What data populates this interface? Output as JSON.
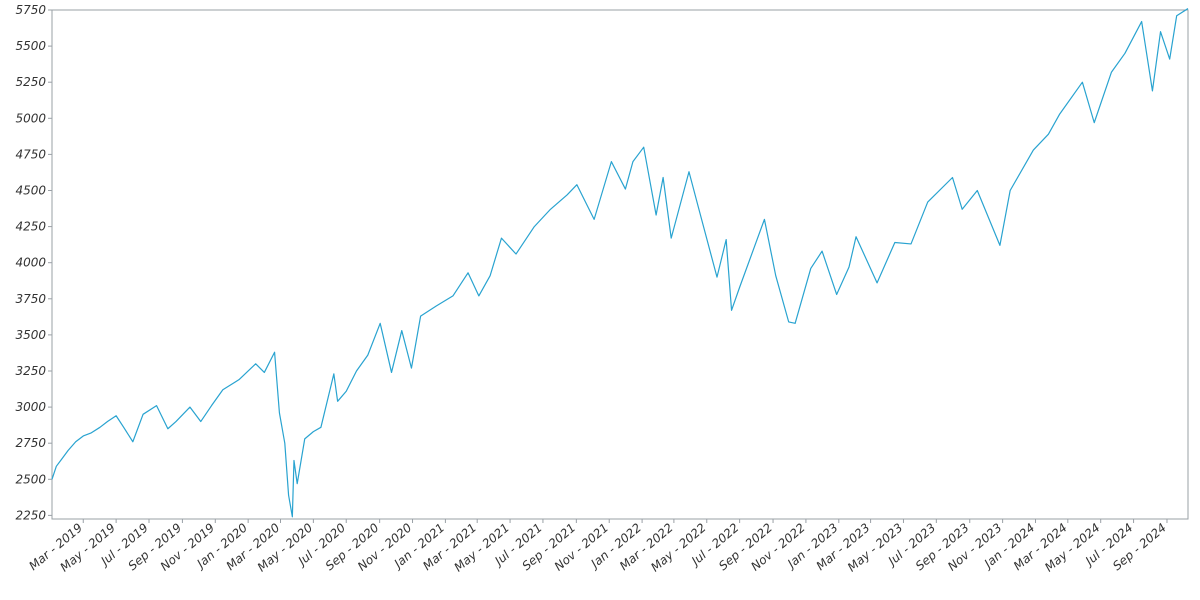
{
  "chart_data": {
    "type": "line",
    "title": "",
    "xlabel": "",
    "ylabel": "",
    "xlim": [
      "2019-01-02",
      "2024-10-10"
    ],
    "ylim": [
      2225,
      5750
    ],
    "grid": false,
    "line_color": "#29a3d0",
    "y_ticks": [
      2250,
      2500,
      2750,
      3000,
      3250,
      3500,
      3750,
      4000,
      4250,
      4500,
      4750,
      5000,
      5250,
      5500,
      5750
    ],
    "x_ticks": [
      {
        "date": "2019-03-01",
        "label": "Mar - 2019"
      },
      {
        "date": "2019-05-01",
        "label": "May - 2019"
      },
      {
        "date": "2019-07-01",
        "label": "Jul - 2019"
      },
      {
        "date": "2019-09-01",
        "label": "Sep - 2019"
      },
      {
        "date": "2019-11-01",
        "label": "Nov - 2019"
      },
      {
        "date": "2020-01-01",
        "label": "Jan - 2020"
      },
      {
        "date": "2020-03-01",
        "label": "Mar - 2020"
      },
      {
        "date": "2020-05-01",
        "label": "May - 2020"
      },
      {
        "date": "2020-07-01",
        "label": "Jul - 2020"
      },
      {
        "date": "2020-09-01",
        "label": "Sep - 2020"
      },
      {
        "date": "2020-11-01",
        "label": "Nov - 2020"
      },
      {
        "date": "2021-01-01",
        "label": "Jan - 2021"
      },
      {
        "date": "2021-03-01",
        "label": "Mar - 2021"
      },
      {
        "date": "2021-05-01",
        "label": "May - 2021"
      },
      {
        "date": "2021-07-01",
        "label": "Jul - 2021"
      },
      {
        "date": "2021-09-01",
        "label": "Sep - 2021"
      },
      {
        "date": "2021-11-01",
        "label": "Nov - 2021"
      },
      {
        "date": "2022-01-01",
        "label": "Jan - 2022"
      },
      {
        "date": "2022-03-01",
        "label": "Mar - 2022"
      },
      {
        "date": "2022-05-01",
        "label": "May - 2022"
      },
      {
        "date": "2022-07-01",
        "label": "Jul - 2022"
      },
      {
        "date": "2022-09-01",
        "label": "Sep - 2022"
      },
      {
        "date": "2022-11-01",
        "label": "Nov - 2022"
      },
      {
        "date": "2023-01-01",
        "label": "Jan - 2023"
      },
      {
        "date": "2023-03-01",
        "label": "Mar - 2023"
      },
      {
        "date": "2023-05-01",
        "label": "May - 2023"
      },
      {
        "date": "2023-07-01",
        "label": "Jul - 2023"
      },
      {
        "date": "2023-09-01",
        "label": "Sep - 2023"
      },
      {
        "date": "2023-11-01",
        "label": "Nov - 2023"
      },
      {
        "date": "2024-01-01",
        "label": "Jan - 2024"
      },
      {
        "date": "2024-03-01",
        "label": "Mar - 2024"
      },
      {
        "date": "2024-05-01",
        "label": "May - 2024"
      },
      {
        "date": "2024-07-01",
        "label": "Jul - 2024"
      },
      {
        "date": "2024-09-01",
        "label": "Sep - 2024"
      }
    ],
    "series": [
      {
        "points": [
          [
            "2019-01-02",
            2500
          ],
          [
            "2019-01-10",
            2590
          ],
          [
            "2019-01-20",
            2640
          ],
          [
            "2019-02-01",
            2700
          ],
          [
            "2019-02-15",
            2760
          ],
          [
            "2019-03-01",
            2800
          ],
          [
            "2019-03-15",
            2820
          ],
          [
            "2019-04-01",
            2860
          ],
          [
            "2019-04-15",
            2900
          ],
          [
            "2019-05-01",
            2940
          ],
          [
            "2019-05-15",
            2860
          ],
          [
            "2019-06-01",
            2760
          ],
          [
            "2019-06-20",
            2950
          ],
          [
            "2019-07-15",
            3010
          ],
          [
            "2019-08-05",
            2850
          ],
          [
            "2019-08-20",
            2900
          ],
          [
            "2019-09-15",
            3000
          ],
          [
            "2019-10-05",
            2900
          ],
          [
            "2019-10-25",
            3010
          ],
          [
            "2019-11-15",
            3120
          ],
          [
            "2019-12-15",
            3190
          ],
          [
            "2020-01-15",
            3300
          ],
          [
            "2020-01-31",
            3240
          ],
          [
            "2020-02-19",
            3380
          ],
          [
            "2020-02-28",
            2960
          ],
          [
            "2020-03-09",
            2750
          ],
          [
            "2020-03-16",
            2390
          ],
          [
            "2020-03-23",
            2240
          ],
          [
            "2020-03-26",
            2630
          ],
          [
            "2020-04-01",
            2470
          ],
          [
            "2020-04-15",
            2780
          ],
          [
            "2020-05-01",
            2830
          ],
          [
            "2020-05-15",
            2860
          ],
          [
            "2020-06-08",
            3230
          ],
          [
            "2020-06-15",
            3040
          ],
          [
            "2020-07-01",
            3110
          ],
          [
            "2020-07-20",
            3250
          ],
          [
            "2020-08-10",
            3360
          ],
          [
            "2020-09-02",
            3580
          ],
          [
            "2020-09-23",
            3240
          ],
          [
            "2020-10-12",
            3530
          ],
          [
            "2020-10-30",
            3270
          ],
          [
            "2020-11-16",
            3630
          ],
          [
            "2020-12-15",
            3700
          ],
          [
            "2021-01-15",
            3770
          ],
          [
            "2021-02-12",
            3930
          ],
          [
            "2021-03-04",
            3770
          ],
          [
            "2021-03-25",
            3910
          ],
          [
            "2021-04-15",
            4170
          ],
          [
            "2021-05-12",
            4060
          ],
          [
            "2021-06-15",
            4250
          ],
          [
            "2021-07-15",
            4370
          ],
          [
            "2021-08-15",
            4470
          ],
          [
            "2021-09-02",
            4540
          ],
          [
            "2021-10-04",
            4300
          ],
          [
            "2021-11-05",
            4700
          ],
          [
            "2021-12-01",
            4510
          ],
          [
            "2021-12-15",
            4700
          ],
          [
            "2022-01-04",
            4800
          ],
          [
            "2022-01-27",
            4330
          ],
          [
            "2022-02-09",
            4590
          ],
          [
            "2022-02-24",
            4170
          ],
          [
            "2022-03-29",
            4630
          ],
          [
            "2022-04-15",
            4390
          ],
          [
            "2022-05-20",
            3900
          ],
          [
            "2022-06-06",
            4160
          ],
          [
            "2022-06-16",
            3670
          ],
          [
            "2022-07-01",
            3830
          ],
          [
            "2022-08-16",
            4300
          ],
          [
            "2022-09-06",
            3910
          ],
          [
            "2022-09-30",
            3590
          ],
          [
            "2022-10-12",
            3580
          ],
          [
            "2022-11-10",
            3960
          ],
          [
            "2022-12-01",
            4080
          ],
          [
            "2022-12-28",
            3780
          ],
          [
            "2023-01-20",
            3970
          ],
          [
            "2023-02-02",
            4180
          ],
          [
            "2023-03-13",
            3860
          ],
          [
            "2023-04-15",
            4140
          ],
          [
            "2023-05-15",
            4130
          ],
          [
            "2023-06-15",
            4420
          ],
          [
            "2023-07-31",
            4590
          ],
          [
            "2023-08-18",
            4370
          ],
          [
            "2023-09-15",
            4500
          ],
          [
            "2023-10-27",
            4120
          ],
          [
            "2023-11-15",
            4500
          ],
          [
            "2023-12-28",
            4780
          ],
          [
            "2024-01-25",
            4890
          ],
          [
            "2024-02-15",
            5030
          ],
          [
            "2024-03-28",
            5250
          ],
          [
            "2024-04-19",
            4970
          ],
          [
            "2024-05-21",
            5320
          ],
          [
            "2024-06-15",
            5450
          ],
          [
            "2024-07-16",
            5670
          ],
          [
            "2024-08-05",
            5190
          ],
          [
            "2024-08-20",
            5600
          ],
          [
            "2024-09-06",
            5410
          ],
          [
            "2024-09-19",
            5710
          ],
          [
            "2024-10-10",
            5760
          ]
        ]
      }
    ]
  }
}
